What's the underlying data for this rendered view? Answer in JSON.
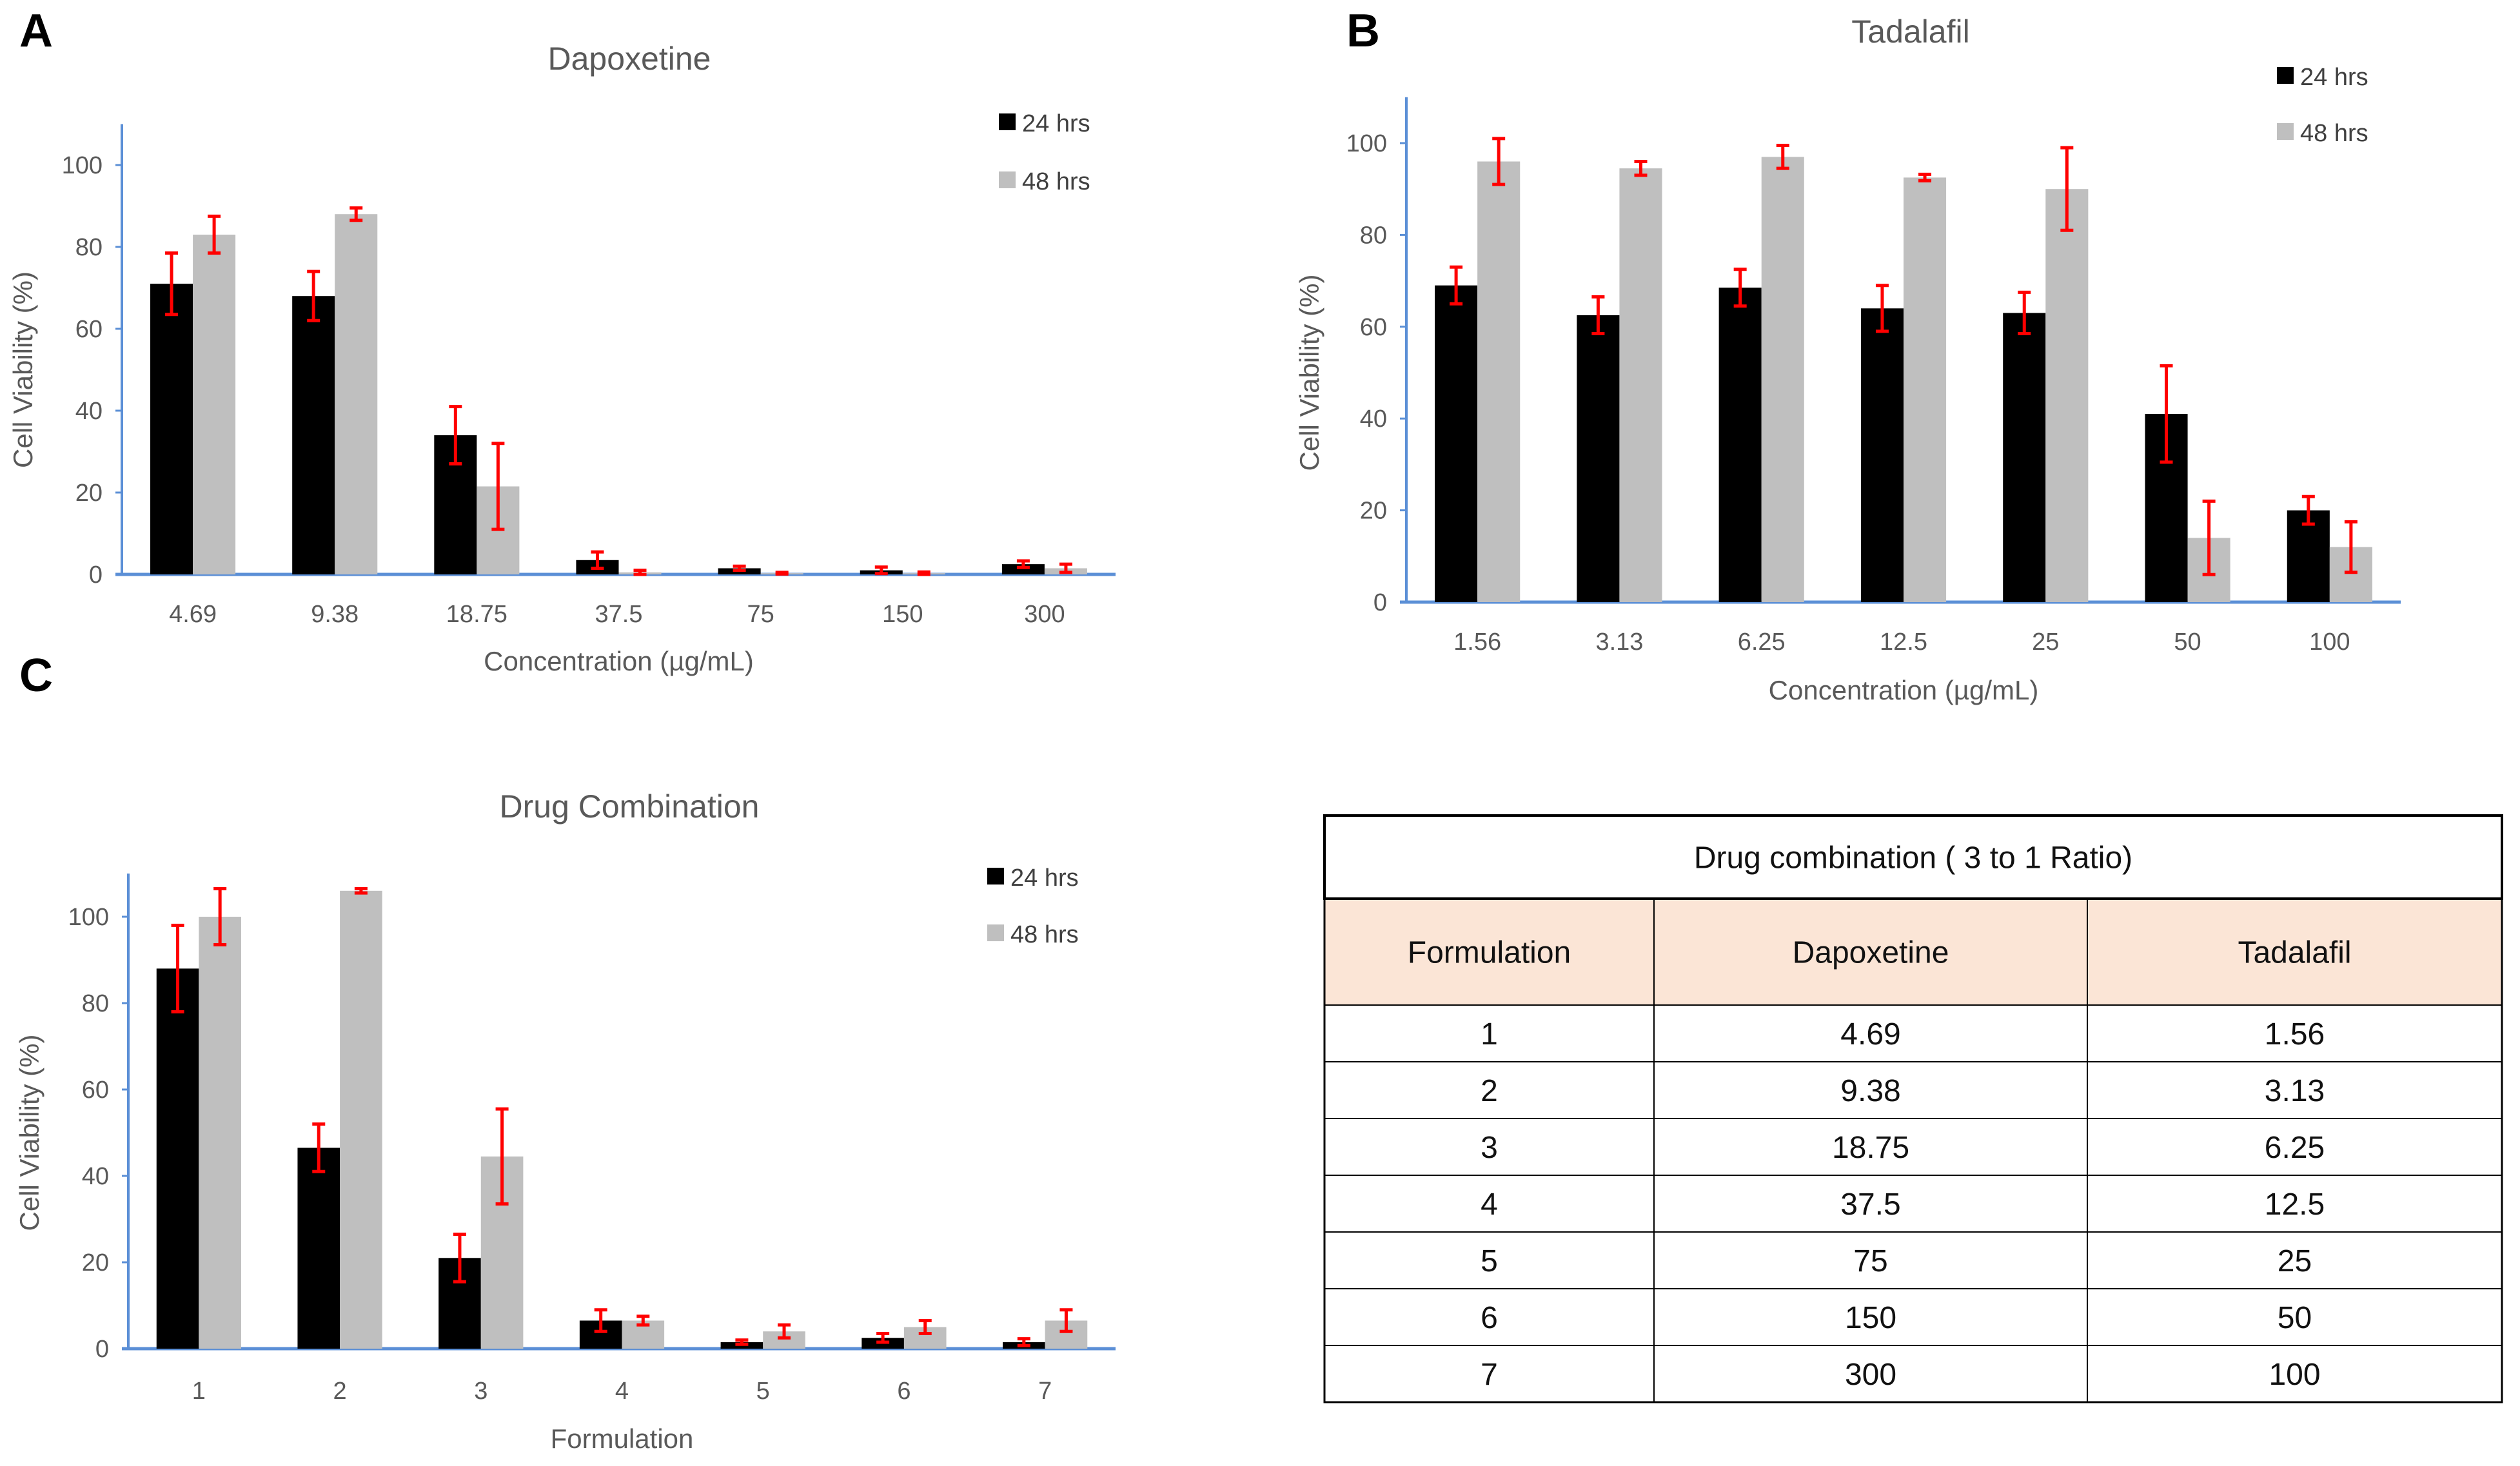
{
  "colors": {
    "h24": "#000000",
    "h48": "#bfbfbf",
    "error": "#ff0000",
    "axis": "#5b8fd6",
    "table_header": "#fbe5d6"
  },
  "chart_data": [
    {
      "panel": "A",
      "type": "bar",
      "title": "Dapoxetine",
      "xlabel": "Concentration (µg/mL)",
      "ylabel": "Cell Viability (%)",
      "ylim": [
        0,
        110
      ],
      "yticks": [
        0,
        20,
        40,
        60,
        80,
        100
      ],
      "legend": "top-right",
      "categories": [
        "4.69",
        "9.38",
        "18.75",
        "37.5",
        "75",
        "150",
        "300"
      ],
      "series": [
        {
          "name": "24 hrs",
          "values": [
            71,
            68,
            34,
            3.5,
            1.5,
            1,
            2.5
          ],
          "errors": [
            7.5,
            6,
            7,
            2,
            0.5,
            0.8,
            0.8
          ]
        },
        {
          "name": "48 hrs",
          "values": [
            83,
            88,
            21.5,
            0.5,
            0.3,
            0.3,
            1.5
          ],
          "errors": [
            4.5,
            1.5,
            10.5,
            0.5,
            0.2,
            0.3,
            1
          ]
        }
      ]
    },
    {
      "panel": "B",
      "type": "bar",
      "title": "Tadalafil",
      "xlabel": "Concentration (µg/mL)",
      "ylabel": "Cell Viability (%)",
      "ylim": [
        0,
        110
      ],
      "yticks": [
        0,
        20,
        40,
        60,
        80,
        100
      ],
      "legend": "top-right",
      "categories": [
        "1.56",
        "3.13",
        "6.25",
        "12.5",
        "25",
        "50",
        "100"
      ],
      "series": [
        {
          "name": "24 hrs",
          "values": [
            69,
            62.5,
            68.5,
            64,
            63,
            41,
            20
          ],
          "errors": [
            4,
            4,
            4,
            5,
            4.5,
            10.5,
            3
          ]
        },
        {
          "name": "48 hrs",
          "values": [
            96,
            94.5,
            97,
            92.5,
            90,
            14,
            12
          ],
          "errors": [
            5,
            1.5,
            2.5,
            0.7,
            9,
            8,
            5.5
          ]
        }
      ]
    },
    {
      "panel": "C",
      "type": "bar",
      "title": "Drug Combination",
      "xlabel": "Formulation",
      "ylabel": "Cell Viability (%)",
      "ylim": [
        0,
        110
      ],
      "yticks": [
        0,
        20,
        40,
        60,
        80,
        100
      ],
      "legend": "top-right",
      "categories": [
        "1",
        "2",
        "3",
        "4",
        "5",
        "6",
        "7"
      ],
      "series": [
        {
          "name": "24 hrs",
          "values": [
            88,
            46.5,
            21,
            6.5,
            1.5,
            2.5,
            1.5
          ],
          "errors": [
            10,
            5.5,
            5.5,
            2.5,
            0.5,
            1,
            0.8
          ]
        },
        {
          "name": "48 hrs",
          "values": [
            100,
            106,
            44.5,
            6.5,
            4,
            5,
            6.5
          ],
          "errors": [
            6.5,
            0.5,
            11,
            1,
            1.5,
            1.5,
            2.5
          ]
        }
      ]
    }
  ],
  "table": {
    "title": "Drug combination ( 3 to 1 Ratio)",
    "headers": [
      "Formulation",
      "Dapoxetine",
      "Tadalafil"
    ],
    "rows": [
      [
        "1",
        "4.69",
        "1.56"
      ],
      [
        "2",
        "9.38",
        "3.13"
      ],
      [
        "3",
        "18.75",
        "6.25"
      ],
      [
        "4",
        "37.5",
        "12.5"
      ],
      [
        "5",
        "75",
        "25"
      ],
      [
        "6",
        "150",
        "50"
      ],
      [
        "7",
        "300",
        "100"
      ]
    ]
  }
}
